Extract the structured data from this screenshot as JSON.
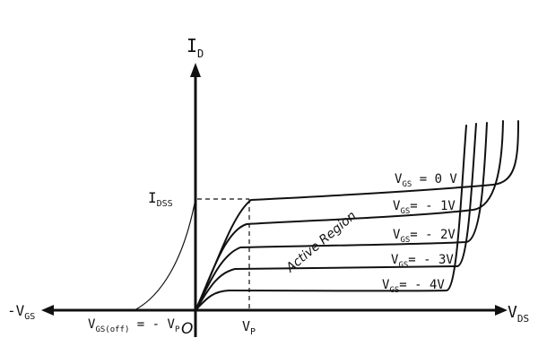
{
  "labels": {
    "id_main": "I",
    "id_sub": "D",
    "vds_main": "V",
    "vds_sub": "DS",
    "neg_vgs_main": "-V",
    "neg_vgs_sub": "GS",
    "origin": "O",
    "vp_main": "V",
    "vp_sub": "P",
    "idss_main": "I",
    "idss_sub": "DSS",
    "vgsoff_main": "V",
    "vgsoff_sub": "GS(off)",
    "vgsoff_rest": " = - V",
    "vgsoff_rest_sub": "P",
    "active_region": "Active Region"
  },
  "curves": [
    {
      "main": "V",
      "sub": "GS",
      "rest": " = 0 V"
    },
    {
      "main": "V",
      "sub": "GS",
      "rest": "= - 1V"
    },
    {
      "main": "V",
      "sub": "GS",
      "rest": "= - 2V"
    },
    {
      "main": "V",
      "sub": "GS",
      "rest": "= - 3V"
    },
    {
      "main": "V",
      "sub": "GS",
      "rest": "= - 4V"
    }
  ]
}
